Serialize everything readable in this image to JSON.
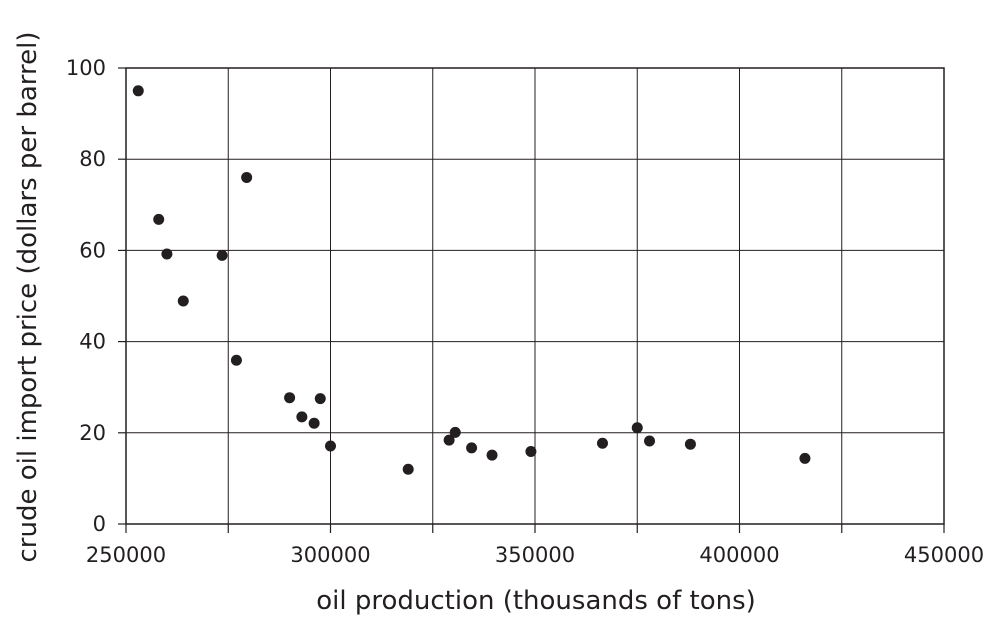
{
  "chart_data": {
    "type": "scatter",
    "title": "",
    "xlabel": "oil production (thousands of tons)",
    "ylabel": "crude oil import price (dollars per barrel)",
    "xlim": [
      250000,
      450000
    ],
    "ylim": [
      0,
      100
    ],
    "x_ticks": [
      "250000",
      "300000",
      "350000",
      "400000",
      "450000"
    ],
    "y_ticks": [
      "0",
      "20",
      "40",
      "60",
      "80",
      "100"
    ],
    "grid": true,
    "legend": "none",
    "point_color": "#231f20",
    "points": [
      {
        "x": 253000,
        "y": 95
      },
      {
        "x": 258000,
        "y": 66.8
      },
      {
        "x": 260000,
        "y": 59.2
      },
      {
        "x": 264000,
        "y": 48.9
      },
      {
        "x": 273500,
        "y": 58.9
      },
      {
        "x": 277000,
        "y": 35.9
      },
      {
        "x": 279500,
        "y": 76
      },
      {
        "x": 290000,
        "y": 27.7
      },
      {
        "x": 293000,
        "y": 23.5
      },
      {
        "x": 296000,
        "y": 22.1
      },
      {
        "x": 297500,
        "y": 27.5
      },
      {
        "x": 300000,
        "y": 17.1
      },
      {
        "x": 319000,
        "y": 12
      },
      {
        "x": 329000,
        "y": 18.4
      },
      {
        "x": 330500,
        "y": 20.1
      },
      {
        "x": 334500,
        "y": 16.7
      },
      {
        "x": 339500,
        "y": 15.1
      },
      {
        "x": 349000,
        "y": 15.9
      },
      {
        "x": 366500,
        "y": 17.7
      },
      {
        "x": 375000,
        "y": 21.1
      },
      {
        "x": 378000,
        "y": 18.2
      },
      {
        "x": 388000,
        "y": 17.5
      },
      {
        "x": 416000,
        "y": 14.4
      }
    ]
  }
}
